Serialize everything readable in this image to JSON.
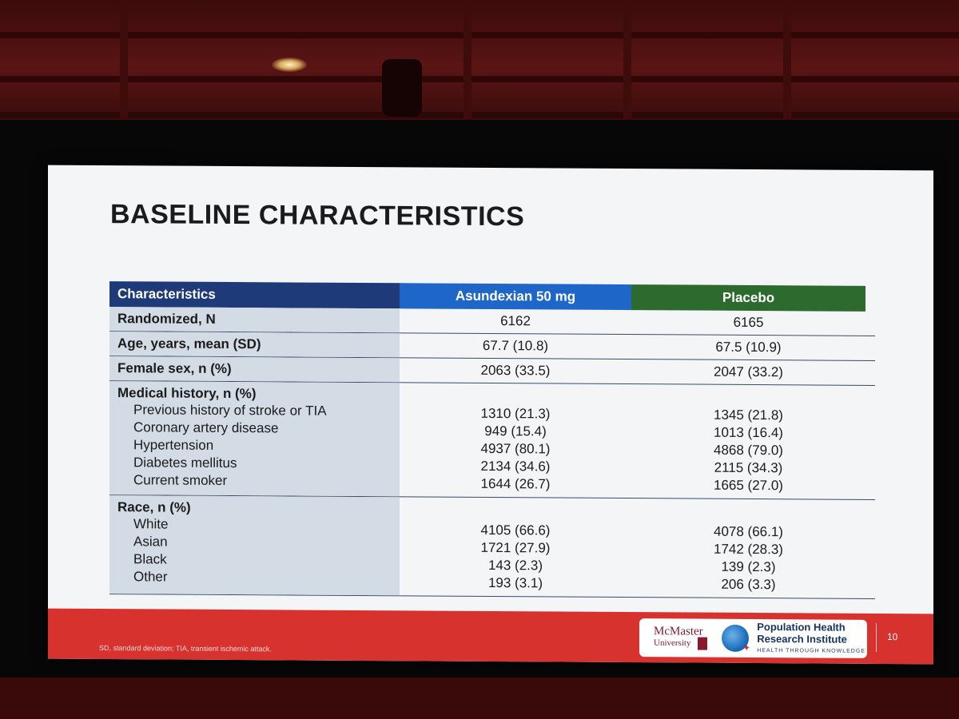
{
  "slide": {
    "title": "BASELINE CHARACTERISTICS",
    "page_number": "10",
    "footnote": "SD, standard deviation; TIA, transient ischemic attack."
  },
  "table": {
    "headers": [
      "Characteristics",
      "Asundexian 50 mg",
      "Placebo"
    ],
    "rows": {
      "randomized": {
        "label": "Randomized, N",
        "a": "6162",
        "p": "6165"
      },
      "age": {
        "label": "Age, years, mean (SD)",
        "a": "67.7 (10.8)",
        "p": "67.5 (10.9)"
      },
      "female": {
        "label": "Female sex, n (%)",
        "a": "2063 (33.5)",
        "p": "2047 (33.2)"
      },
      "medical": {
        "label": "Medical history, n (%)",
        "items": [
          {
            "label": "Previous history of stroke or TIA",
            "a": "1310 (21.3)",
            "p": "1345 (21.8)"
          },
          {
            "label": "Coronary artery disease",
            "a": "949 (15.4)",
            "p": "1013 (16.4)"
          },
          {
            "label": "Hypertension",
            "a": "4937 (80.1)",
            "p": "4868 (79.0)"
          },
          {
            "label": "Diabetes mellitus",
            "a": "2134 (34.6)",
            "p": "2115 (34.3)"
          },
          {
            "label": "Current smoker",
            "a": "1644 (26.7)",
            "p": "1665 (27.0)"
          }
        ]
      },
      "race": {
        "label": "Race, n (%)",
        "items": [
          {
            "label": "White",
            "a": "4105 (66.6)",
            "p": "4078 (66.1)"
          },
          {
            "label": "Asian",
            "a": "1721 (27.9)",
            "p": "1742 (28.3)"
          },
          {
            "label": "Black",
            "a": "143 (2.3)",
            "p": "139 (2.3)"
          },
          {
            "label": "Other",
            "a": "193 (3.1)",
            "p": "206 (3.3)"
          }
        ]
      }
    }
  },
  "logos": {
    "mcmaster_name": "McMaster",
    "mcmaster_sub": "University",
    "phri_line1": "Population Health",
    "phri_line2": "Research Institute",
    "phri_tagline": "HEALTH THROUGH KNOWLEDGE"
  },
  "colors": {
    "header_dark_blue": "#1e3a78",
    "header_blue": "#1e66c8",
    "header_green": "#2d6a2d",
    "footer_red": "#d8322f"
  }
}
